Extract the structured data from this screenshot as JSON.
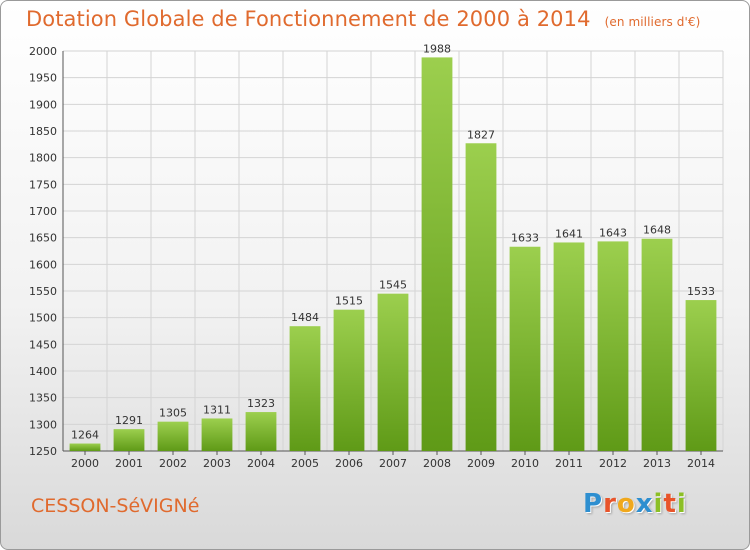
{
  "chart_data": {
    "type": "bar",
    "title": "Dotation Globale de Fonctionnement de 2000 à 2014",
    "unit_label": "(en milliers d'€)",
    "categories": [
      "2000",
      "2001",
      "2002",
      "2003",
      "2004",
      "2005",
      "2006",
      "2007",
      "2008",
      "2009",
      "2010",
      "2011",
      "2012",
      "2013",
      "2014"
    ],
    "values": [
      1264,
      1291,
      1305,
      1311,
      1323,
      1484,
      1515,
      1545,
      1988,
      1827,
      1633,
      1641,
      1643,
      1648,
      1533
    ],
    "ylim": [
      1250,
      2000
    ],
    "yticks": [
      "1250",
      "1300",
      "1350",
      "1400",
      "1450",
      "1500",
      "1550",
      "1600",
      "1650",
      "1700",
      "1750",
      "1800",
      "1850",
      "1900",
      "1950",
      "2000"
    ],
    "grid": true,
    "bar_color_top": "#9ccf4e",
    "bar_color_bottom": "#5f9a17"
  },
  "footer": {
    "city": "CESSON-SéVIGNé",
    "logo_letters": [
      "P",
      "r",
      "o",
      "x",
      "i",
      "t",
      "i"
    ],
    "logo_colors": [
      "#2e8fd0",
      "#e8542a",
      "#f0a81c",
      "#2e8fd0",
      "#8cbf26",
      "#e8542a",
      "#8cbf26"
    ]
  }
}
